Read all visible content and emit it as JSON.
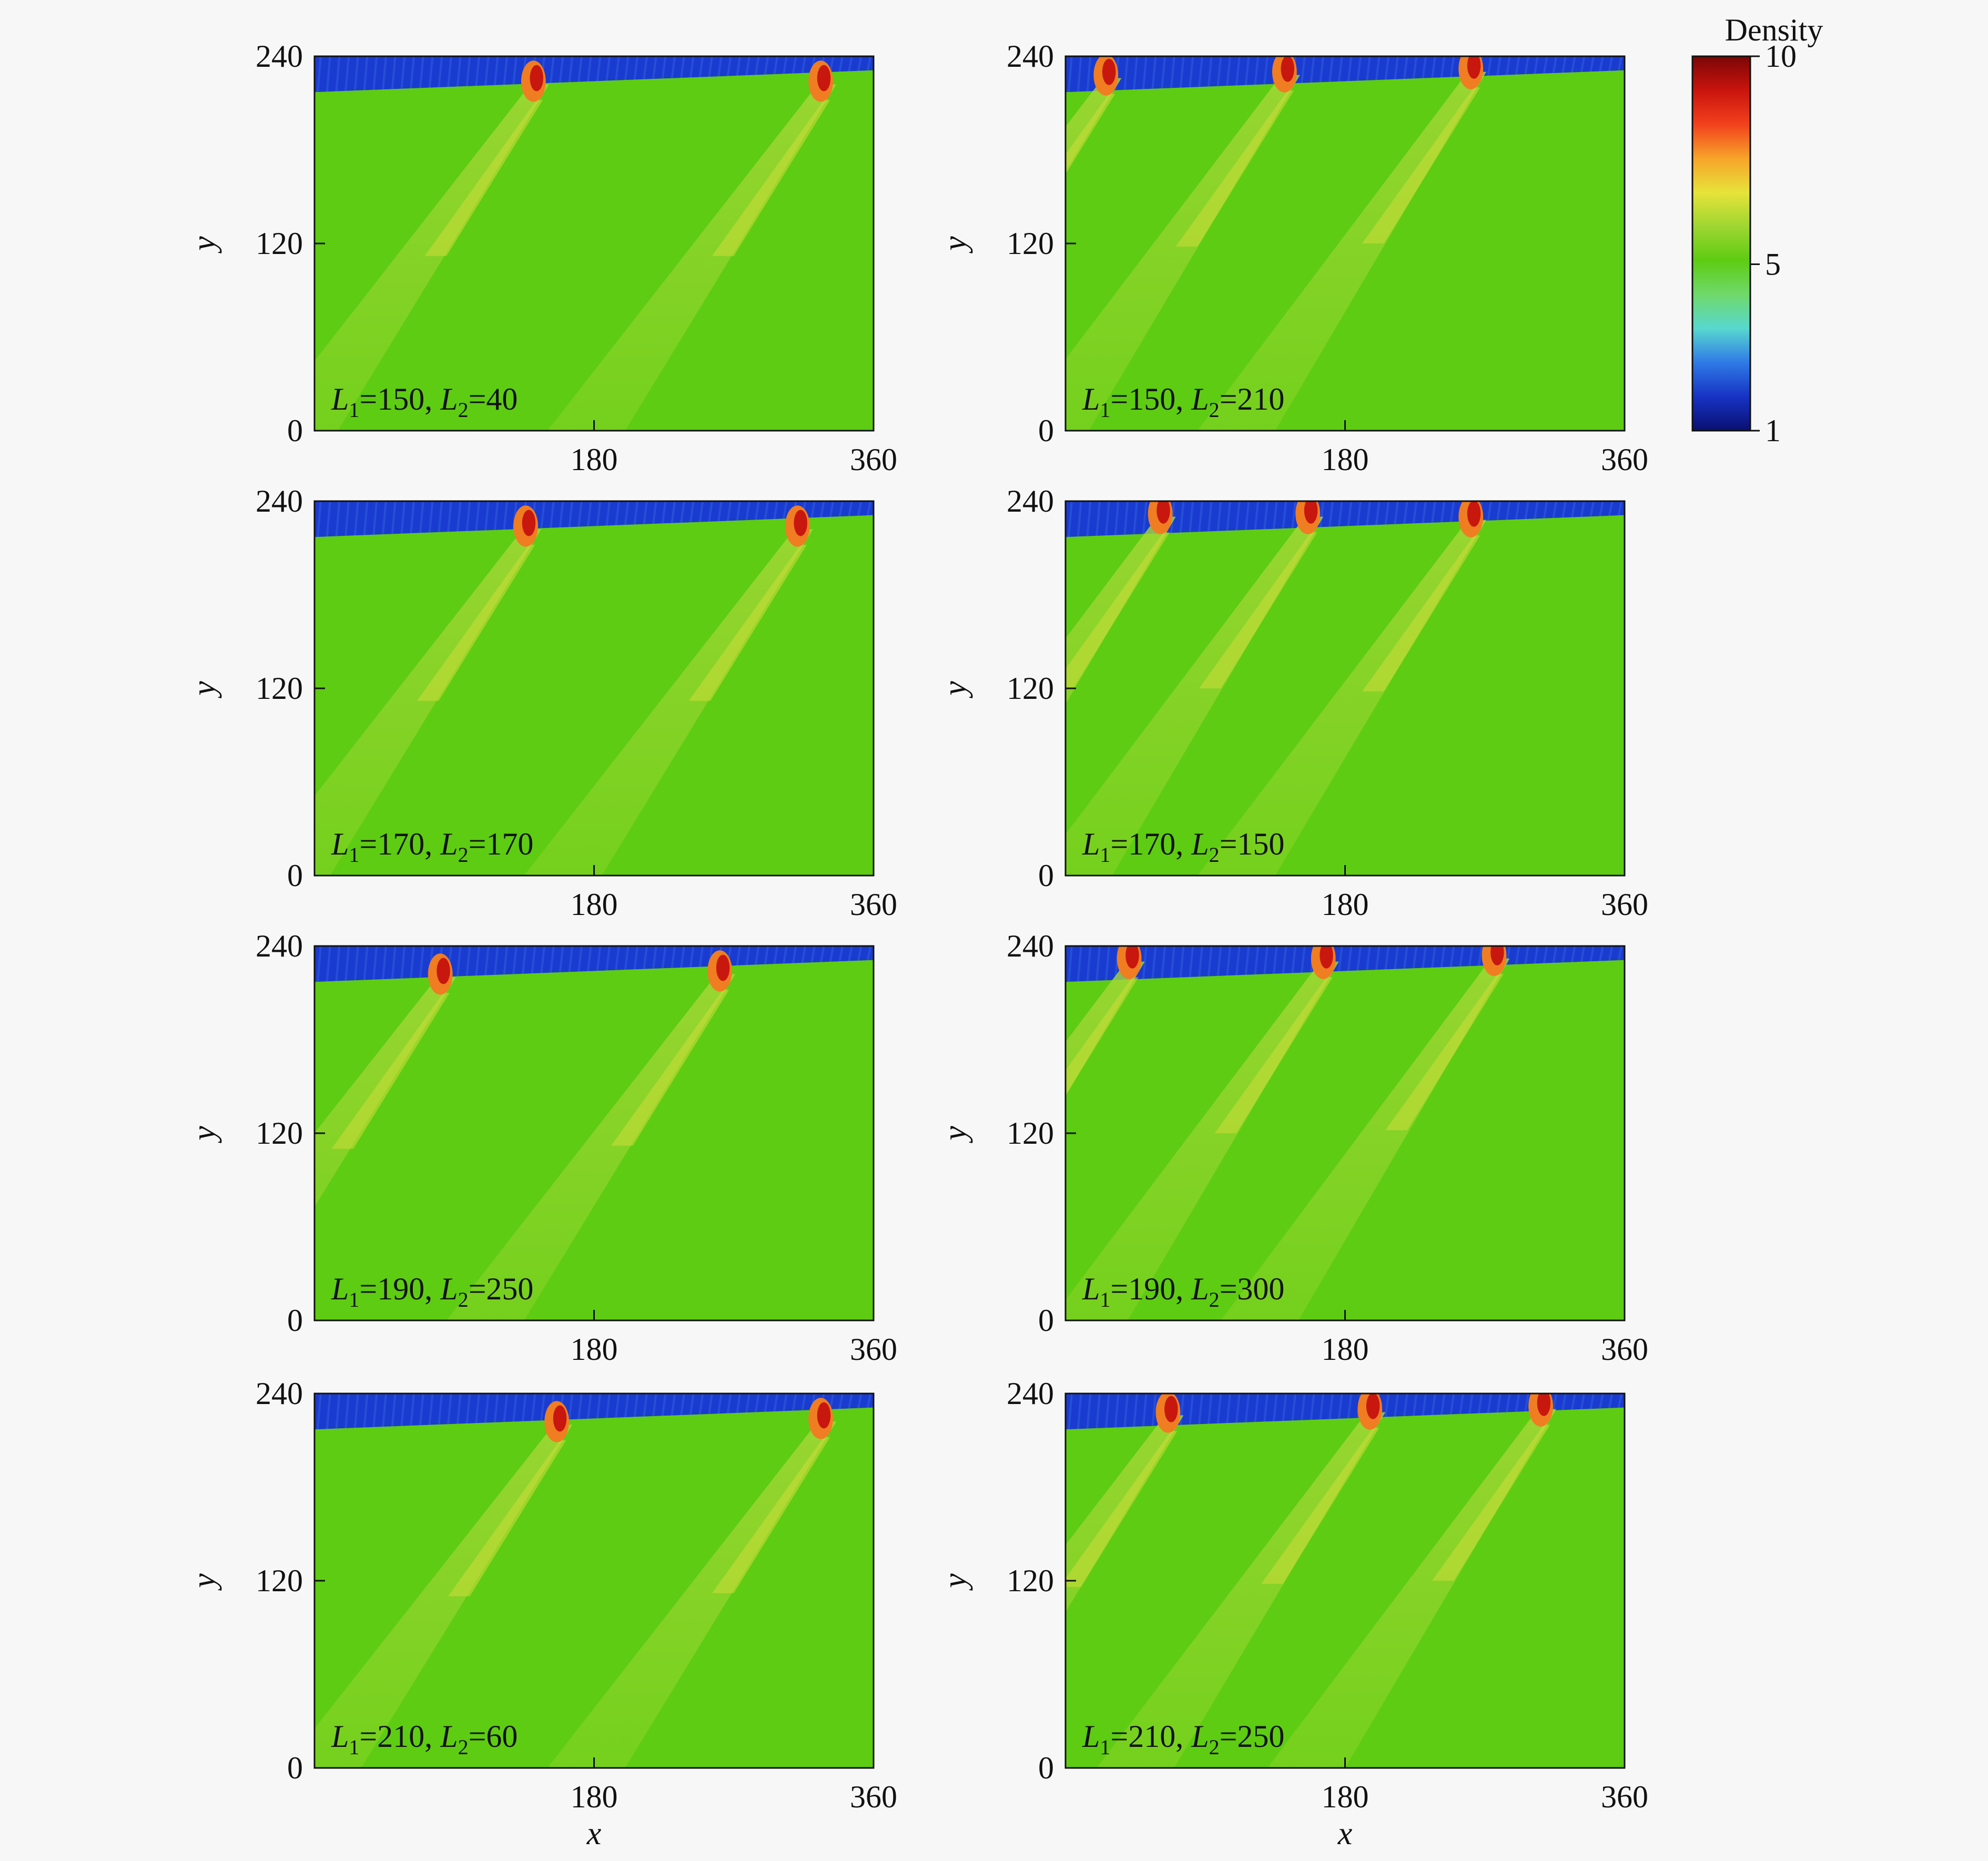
{
  "chart_data": {
    "type": "heatmap",
    "layout": {
      "rows": 4,
      "cols": 2
    },
    "xlim": [
      0,
      360
    ],
    "ylim": [
      0,
      240
    ],
    "xticks": [
      "180",
      "360"
    ],
    "yticks": [
      "0",
      "120",
      "240"
    ],
    "xlabel": "x",
    "ylabel": "y",
    "colorbar": {
      "title": "Density",
      "range": [
        1,
        10
      ],
      "ticks": [
        "10",
        "5",
        "1"
      ],
      "colors": [
        "#0a1070",
        "#1733c4",
        "#2f7ae6",
        "#58d8cf",
        "#6fd96a",
        "#5ecc12",
        "#9ed631",
        "#e6e33a",
        "#f7a42a",
        "#f2411c",
        "#c9140e",
        "#7a0606"
      ]
    },
    "background_color": "#5ecc12",
    "panels": [
      {
        "L1": "150",
        "L2": "40",
        "label": {
          "a": "L",
          "sa": "1",
          "b": "=150, ",
          "c": "L",
          "sc": "2",
          "d": "=40"
        },
        "peaks": [
          [
            145,
            222
          ],
          [
            330,
            222
          ]
        ]
      },
      {
        "L1": "150",
        "L2": "210",
        "label": {
          "a": "L",
          "sa": "1",
          "b": "=150, ",
          "c": "L",
          "sc": "2",
          "d": "=210"
        },
        "peaks": [
          [
            30,
            226
          ],
          [
            145,
            228
          ],
          [
            265,
            230
          ]
        ]
      },
      {
        "L1": "170",
        "L2": "170",
        "label": {
          "a": "L",
          "sa": "1",
          "b": "=170, ",
          "c": "L",
          "sc": "2",
          "d": "=170"
        },
        "peaks": [
          [
            140,
            222
          ],
          [
            315,
            222
          ]
        ]
      },
      {
        "L1": "170",
        "L2": "150",
        "label": {
          "a": "L",
          "sa": "1",
          "b": "=170, ",
          "c": "L",
          "sc": "2",
          "d": "=150"
        },
        "peaks": [
          [
            65,
            230
          ],
          [
            160,
            230
          ],
          [
            265,
            228
          ]
        ]
      },
      {
        "L1": "190",
        "L2": "250",
        "label": {
          "a": "L",
          "sa": "1",
          "b": "=190, ",
          "c": "L",
          "sc": "2",
          "d": "=250"
        },
        "peaks": [
          [
            85,
            220
          ],
          [
            265,
            222
          ]
        ]
      },
      {
        "L1": "190",
        "L2": "300",
        "label": {
          "a": "L",
          "sa": "1",
          "b": "=190, ",
          "c": "L",
          "sc": "2",
          "d": "=300"
        },
        "peaks": [
          [
            45,
            230
          ],
          [
            170,
            230
          ],
          [
            280,
            232
          ]
        ]
      },
      {
        "L1": "210",
        "L2": "60",
        "label": {
          "a": "L",
          "sa": "1",
          "b": "=210, ",
          "c": "L",
          "sc": "2",
          "d": "=60"
        },
        "peaks": [
          [
            160,
            220
          ],
          [
            330,
            222
          ]
        ]
      },
      {
        "L1": "210",
        "L2": "250",
        "label": {
          "a": "L",
          "sa": "1",
          "b": "=210, ",
          "c": "L",
          "sc": "2",
          "d": "=250"
        },
        "peaks": [
          [
            70,
            226
          ],
          [
            200,
            228
          ],
          [
            310,
            230
          ]
        ]
      }
    ]
  }
}
